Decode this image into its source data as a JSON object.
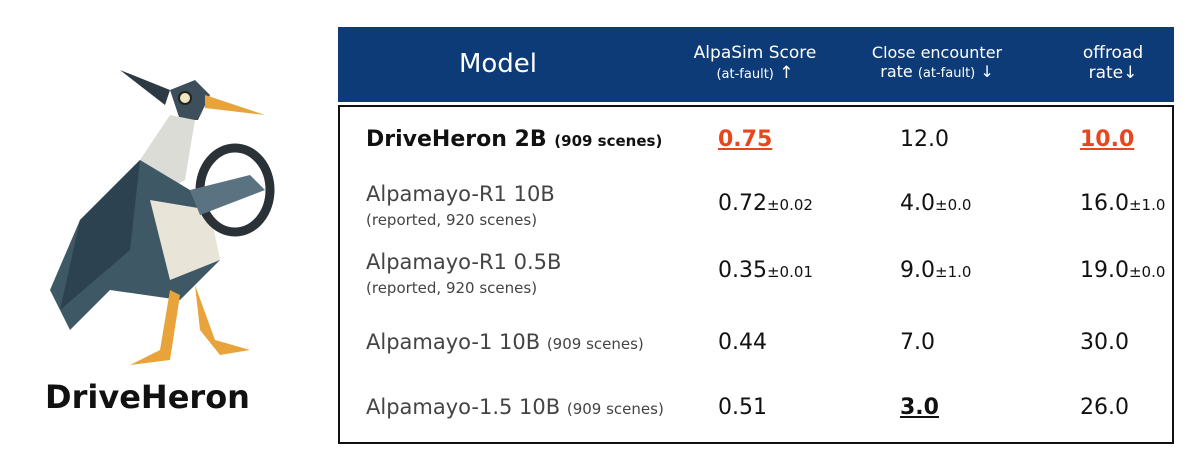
{
  "logo": {
    "label": "DriveHeron"
  },
  "table": {
    "header": [
      {
        "title": "Model"
      },
      {
        "title": "AlpaSim Score",
        "sub": "(at-fault)",
        "arrow": "↑"
      },
      {
        "title": "Close encounter",
        "line2": "rate",
        "sub": "(at-fault)",
        "arrow": "↓"
      },
      {
        "title": "offroad",
        "line2": "rate",
        "arrow": "↓"
      }
    ],
    "rows": [
      {
        "model": "DriveHeron 2B",
        "note": "(909 scenes)",
        "cells": [
          {
            "value": "0.75"
          },
          {
            "value": "12.0"
          },
          {
            "value": "10.0"
          }
        ]
      },
      {
        "model": "Alpamayo-R1 10B",
        "note": "(reported, 920 scenes)",
        "cells": [
          {
            "value": "0.72",
            "err": "±0.02"
          },
          {
            "value": "4.0",
            "err": "±0.0"
          },
          {
            "value": "16.0",
            "err": "±1.0"
          }
        ]
      },
      {
        "model": "Alpamayo-R1 0.5B",
        "note": "(reported, 920 scenes)",
        "cells": [
          {
            "value": "0.35",
            "err": "±0.01"
          },
          {
            "value": "9.0",
            "err": "±1.0"
          },
          {
            "value": "19.0",
            "err": "±0.0"
          }
        ]
      },
      {
        "model": "Alpamayo-1 10B",
        "note": "(909 scenes)",
        "cells": [
          {
            "value": "0.44"
          },
          {
            "value": "7.0"
          },
          {
            "value": "30.0"
          }
        ]
      },
      {
        "model": "Alpamayo-1.5 10B",
        "note": "(909 scenes)",
        "cells": [
          {
            "value": "0.51"
          },
          {
            "value": "3.0"
          },
          {
            "value": "26.0"
          }
        ]
      }
    ]
  }
}
